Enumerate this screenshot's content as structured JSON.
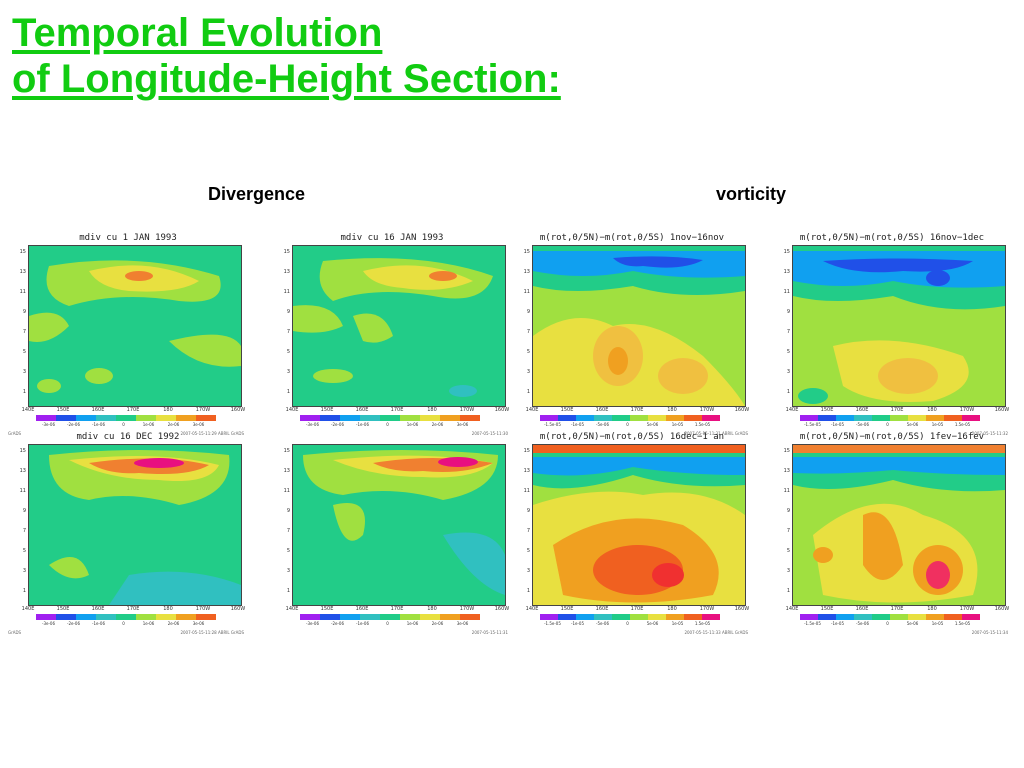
{
  "title": {
    "line1": "Temporal Evolution ",
    "line2": "of Longitude-Height Section:"
  },
  "columns": {
    "left": "Divergence",
    "right": "vorticity"
  },
  "panels": [
    {
      "title": "mdiv cu 1 JAN 1993",
      "yticks": [
        "15",
        "13",
        "11",
        "9",
        "7",
        "5",
        "3",
        "1"
      ],
      "xticks": [
        "140E",
        "150E",
        "160E",
        "170E",
        "180",
        "170W",
        "160W"
      ],
      "cbar_labels": [
        "-3e-06",
        "-2e-06",
        "-1e-06",
        "0",
        "1e-06",
        "2e-06",
        "3e-06"
      ],
      "foot_left": "GrADS",
      "foot_right": "2007-05-15-11:29 ABRIL GrADS"
    },
    {
      "title": "mdiv cu 16 JAN 1993",
      "yticks": [
        "15",
        "13",
        "11",
        "9",
        "7",
        "5",
        "3",
        "1"
      ],
      "xticks": [
        "140E",
        "150E",
        "160E",
        "170E",
        "180",
        "170W",
        "160W"
      ],
      "cbar_labels": [
        "-3e-06",
        "-2e-06",
        "-1e-06",
        "0",
        "1e-06",
        "2e-06",
        "3e-06"
      ],
      "foot_left": "",
      "foot_right": "2007-05-15-11:30"
    },
    {
      "title": "m(rot,0/5N)−m(rot,0/5S) 1nov−16nov",
      "yticks": [
        "15",
        "13",
        "11",
        "9",
        "7",
        "5",
        "3",
        "1"
      ],
      "xticks": [
        "140E",
        "150E",
        "160E",
        "170E",
        "180",
        "170W",
        "160W"
      ],
      "cbar_labels": [
        "-1.5e-05",
        "-1e-05",
        "-5e-06",
        "0",
        "5e-06",
        "1e-05",
        "1.5e-05"
      ],
      "foot_left": "",
      "foot_right": "2007-05-15-11:31 ABRIL GrADS"
    },
    {
      "title": "m(rot,0/5N)−m(rot,0/5S) 16nov−1dec",
      "yticks": [
        "15",
        "13",
        "11",
        "9",
        "7",
        "5",
        "3",
        "1"
      ],
      "xticks": [
        "140E",
        "150E",
        "160E",
        "170E",
        "180",
        "170W",
        "160W"
      ],
      "cbar_labels": [
        "-1.5e-05",
        "-1e-05",
        "-5e-06",
        "0",
        "5e-06",
        "1e-05",
        "1.5e-05"
      ],
      "foot_left": "",
      "foot_right": "2007-05-15-11:32"
    },
    {
      "title": "mdiv cu 16 DEC 1992",
      "yticks": [
        "15",
        "13",
        "11",
        "9",
        "7",
        "5",
        "3",
        "1"
      ],
      "xticks": [
        "140E",
        "150E",
        "160E",
        "170E",
        "180",
        "170W",
        "160W"
      ],
      "cbar_labels": [
        "-3e-06",
        "-2e-06",
        "-1e-06",
        "0",
        "1e-06",
        "2e-06",
        "3e-06"
      ],
      "foot_left": "GrADS",
      "foot_right": "2007-05-15-11:28 ABRIL GrADS"
    },
    {
      "title": "",
      "yticks": [
        "15",
        "13",
        "11",
        "9",
        "7",
        "5",
        "3",
        "1"
      ],
      "xticks": [
        "140E",
        "150E",
        "160E",
        "170E",
        "180",
        "170W",
        "160W"
      ],
      "cbar_labels": [
        "-3e-06",
        "-2e-06",
        "-1e-06",
        "0",
        "1e-06",
        "2e-06",
        "3e-06"
      ],
      "foot_left": "",
      "foot_right": "2007-05-15-11:31"
    },
    {
      "title": "m(rot,0/5N)−m(rot,0/5S) 16dec−1 an",
      "yticks": [
        "15",
        "13",
        "11",
        "9",
        "7",
        "5",
        "3",
        "1"
      ],
      "xticks": [
        "140E",
        "150E",
        "160E",
        "170E",
        "180",
        "170W",
        "160W"
      ],
      "cbar_labels": [
        "-1.5e-05",
        "-1e-05",
        "-5e-06",
        "0",
        "5e-06",
        "1e-05",
        "1.5e-05"
      ],
      "foot_left": "",
      "foot_right": "2007-05-15-11:33 ABRIL GrADS"
    },
    {
      "title": "m(rot,0/5N)−m(rot,0/5S) 1fev−16fev",
      "yticks": [
        "15",
        "13",
        "11",
        "9",
        "7",
        "5",
        "3",
        "1"
      ],
      "xticks": [
        "140E",
        "150E",
        "160E",
        "170E",
        "180",
        "170W",
        "160W"
      ],
      "cbar_labels": [
        "-1.5e-05",
        "-1e-05",
        "-5e-06",
        "0",
        "5e-06",
        "1e-05",
        "1.5e-05"
      ],
      "foot_left": "",
      "foot_right": "2007-05-15-11:34"
    }
  ],
  "palette": [
    "#a020f0",
    "#2050e8",
    "#10a0f0",
    "#30c0c0",
    "#20cc88",
    "#a0e040",
    "#e8e040",
    "#f0a020",
    "#f06020",
    "#e81080"
  ]
}
